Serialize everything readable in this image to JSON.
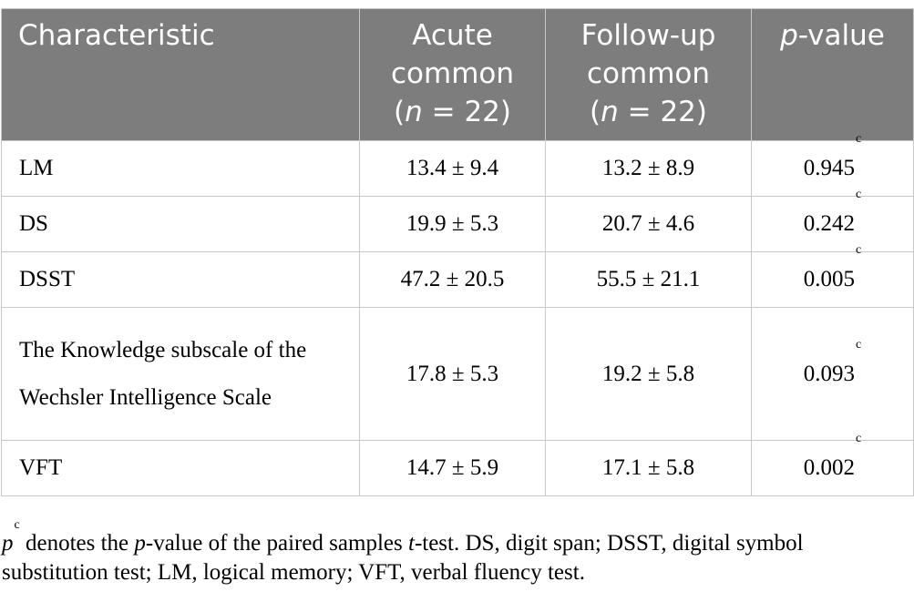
{
  "table": {
    "headers": {
      "characteristic": "Characteristic",
      "acute_line1": "Acute",
      "acute_line2": "common",
      "acute_n_prefix": "(",
      "acute_n_var": "n",
      "acute_n_suffix": " = 22)",
      "follow_line1": "Follow-up",
      "follow_line2": "common",
      "follow_n_prefix": "(",
      "follow_n_var": "n",
      "follow_n_suffix": " = 22)",
      "pvalue_var": "p",
      "pvalue_suffix": "-value"
    },
    "rows": [
      {
        "characteristic": "LM",
        "acute": "13.4 ± 9.4",
        "follow_up": "13.2 ± 8.9",
        "p_value": "0.945",
        "p_sup": "c"
      },
      {
        "characteristic": "DS",
        "acute": "19.9 ± 5.3",
        "follow_up": "20.7 ± 4.6",
        "p_value": "0.242",
        "p_sup": "c"
      },
      {
        "characteristic": "DSST",
        "acute": "47.2 ± 20.5",
        "follow_up": "55.5 ± 21.1",
        "p_value": "0.005",
        "p_sup": "c"
      },
      {
        "characteristic": "The Knowledge subscale of the Wechsler Intelligence Scale",
        "acute": "17.8 ± 5.3",
        "follow_up": "19.2 ± 5.8",
        "p_value": "0.093",
        "p_sup": "c"
      },
      {
        "characteristic": "VFT",
        "acute": "14.7 ± 5.9",
        "follow_up": "17.1 ± 5.8",
        "p_value": "0.002",
        "p_sup": "c"
      }
    ]
  },
  "footnote": {
    "p_var": "p",
    "p_sup": "c",
    "text_a": " denotes the ",
    "p_var2": "p",
    "text_b": "-value of the paired samples ",
    "t_var": "t",
    "text_c": "-test. DS, digit span; DSST, digital symbol substitution test; LM, logical memory; VFT, verbal fluency test."
  }
}
